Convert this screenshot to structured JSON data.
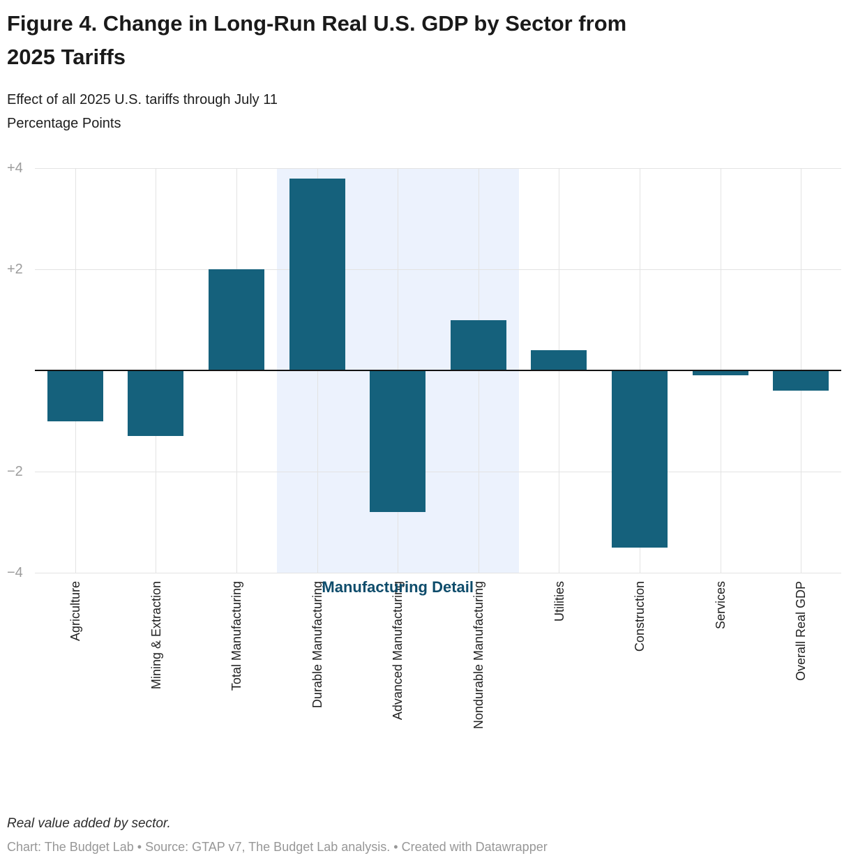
{
  "header": {
    "title": "Figure 4. Change in Long-Run Real U.S. GDP by Sector from 2025 Tariffs",
    "title_line1": "Figure 4. Change in Long-Run Real U.S. GDP by Sector from",
    "title_line2": "2025 Tariffs",
    "subtitle": "Effect of all 2025 U.S. tariffs through July 11",
    "unit_label": "Percentage Points"
  },
  "chart_data": {
    "type": "bar",
    "title": "Change in Long-Run Real U.S. GDP by Sector from 2025 Tariffs",
    "xlabel": "",
    "ylabel": "Percentage Points",
    "categories": [
      "Agriculture",
      "Mining & Extraction",
      "Total Manufacturing",
      "Durable Manufacturing",
      "Advanced Manufacturing",
      "Nondurable Manufacturing",
      "Utilities",
      "Construction",
      "Services",
      "Overall Real GDP"
    ],
    "values": [
      -1.0,
      -1.3,
      2.0,
      3.8,
      -2.8,
      1.0,
      0.4,
      -3.5,
      -0.1,
      -0.4
    ],
    "ylim": [
      -4,
      4
    ],
    "yticks": [
      {
        "v": 4,
        "label": "+4"
      },
      {
        "v": 2,
        "label": "+2"
      },
      {
        "v": -2,
        "label": "−2"
      },
      {
        "v": -4,
        "label": "−4"
      }
    ],
    "gridline_values": [
      4,
      2,
      -2,
      -4
    ],
    "grid": true,
    "legend_position": "none",
    "highlight": {
      "label": "Manufacturing Detail",
      "first_column_index": 3,
      "last_column_index": 5,
      "covers": [
        "Durable Manufacturing",
        "Advanced Manufacturing",
        "Nondurable Manufacturing"
      ]
    },
    "colors": {
      "bar": "#15617c",
      "highlight_band": "#ecf2fd",
      "highlight_label": "#0e4c6b",
      "zero_line": "#141414",
      "gridline": "#e3e3e3",
      "tick_label": "#9c9c9c"
    }
  },
  "footer": {
    "note": "Real value added by sector.",
    "credit": "Chart: The Budget Lab • Source: GTAP v7, The Budget Lab analysis. • Created with Datawrapper"
  }
}
